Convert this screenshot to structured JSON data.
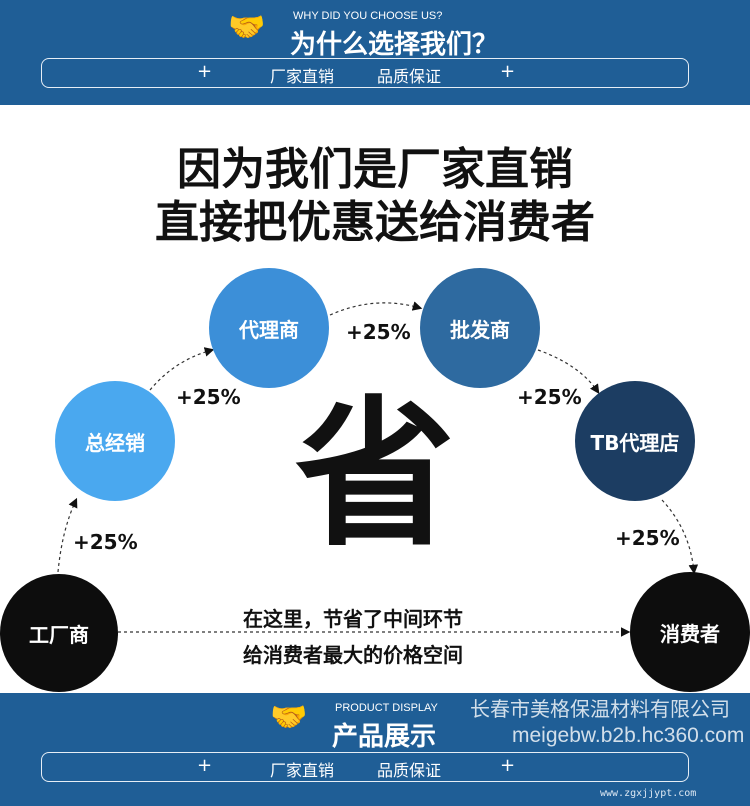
{
  "header": {
    "subtitle_en": "WHY DID YOU CHOOSE US?",
    "title": "为什么选择我们？",
    "pill_left": "厂家直销",
    "pill_right": "品质保证",
    "plus": "+",
    "icon": "handshake-icon",
    "color": "#1f5e96"
  },
  "headline": {
    "line1": "因为我们是厂家直销",
    "line2": "直接把优惠送给消费者"
  },
  "flow": {
    "nodes": [
      {
        "label": "工厂商",
        "color": "#0d0d0d"
      },
      {
        "label": "总经销",
        "color": "#4aa8ef"
      },
      {
        "label": "代理商",
        "color": "#3c8fd8"
      },
      {
        "label": "批发商",
        "color": "#2e6aa0"
      },
      {
        "label": "TB代理店",
        "color": "#1c3d62"
      },
      {
        "label": "消费者",
        "color": "#0d0d0d"
      }
    ],
    "markups": [
      "+25%",
      "+25%",
      "+25%",
      "+25%",
      "+25%"
    ],
    "center": "省",
    "message1": "在这里，节省了中间环节",
    "message2": "给消费者最大的价格空间"
  },
  "footer": {
    "subtitle_en": "PRODUCT DISPLAY",
    "title": "产品展示",
    "pill_left": "厂家直销",
    "pill_right": "品质保证",
    "plus": "+"
  },
  "watermark": {
    "company": "长春市美格保温材料有限公司",
    "site1": "www.zgxjjypt.com",
    "site2": "meigebw.b2b.hc360.com"
  }
}
